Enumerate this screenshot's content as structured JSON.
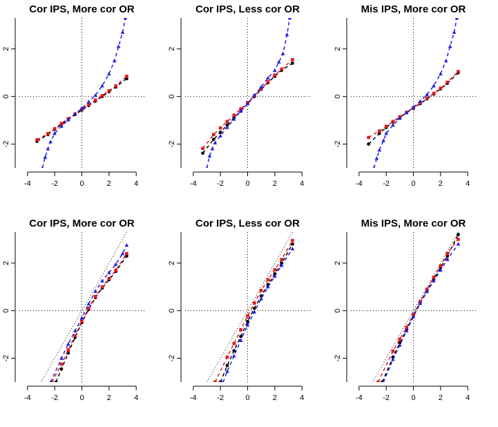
{
  "colors": {
    "black": "#000000",
    "red": "#e41a1c",
    "blue": "#1f1fe6"
  },
  "chart_data": [
    {
      "type": "scatter",
      "title": "Cor IPS, More cor OR",
      "xlim": [
        -4.6,
        4.6
      ],
      "ylim": [
        -3.0,
        3.3
      ],
      "xticks": [
        -4,
        -2,
        0,
        2,
        4
      ],
      "yticks": [
        -2,
        0,
        2
      ],
      "guides": [
        "x=0",
        "y=0"
      ],
      "series": [
        {
          "color": "black",
          "marker": "circle",
          "x": [
            -3.3,
            -2.5,
            -2.0,
            -1.5,
            -1.0,
            -0.5,
            0.0,
            0.5,
            1.0,
            1.5,
            2.0,
            2.5,
            3.3
          ],
          "y": [
            -1.88,
            -1.6,
            -1.38,
            -1.17,
            -0.96,
            -0.76,
            -0.57,
            -0.38,
            -0.19,
            0.0,
            0.2,
            0.4,
            0.75
          ]
        },
        {
          "color": "red",
          "marker": "square",
          "x": [
            -3.3,
            -2.5,
            -2.0,
            -1.5,
            -1.0,
            -0.5,
            0.0,
            0.5,
            1.0,
            1.5,
            2.0,
            2.5,
            3.3
          ],
          "y": [
            -1.82,
            -1.56,
            -1.35,
            -1.13,
            -0.93,
            -0.73,
            -0.53,
            -0.34,
            -0.15,
            0.04,
            0.24,
            0.45,
            0.85
          ]
        },
        {
          "color": "blue",
          "marker": "triangle",
          "x": [
            -2.9,
            -2.7,
            -2.5,
            -2.3,
            -2.0,
            -1.5,
            -1.0,
            -0.5,
            0.0,
            0.5,
            1.0,
            1.5,
            2.0,
            2.4,
            2.7,
            3.0,
            3.2
          ],
          "y": [
            -3.0,
            -2.55,
            -2.2,
            -1.9,
            -1.55,
            -1.25,
            -0.98,
            -0.73,
            -0.5,
            -0.22,
            0.05,
            0.45,
            0.95,
            1.5,
            2.1,
            2.7,
            3.3
          ]
        }
      ]
    },
    {
      "type": "scatter",
      "title": "Cor IPS, Less cor OR",
      "xlim": [
        -4.6,
        4.6
      ],
      "ylim": [
        -3.0,
        3.3
      ],
      "xticks": [
        -4,
        -2,
        0,
        2,
        4
      ],
      "yticks": [
        -2,
        0,
        2
      ],
      "guides": [
        "x=0",
        "y=0"
      ],
      "series": [
        {
          "color": "black",
          "marker": "circle",
          "x": [
            -3.3,
            -2.5,
            -2.0,
            -1.5,
            -1.0,
            -0.5,
            0.0,
            0.5,
            1.0,
            1.5,
            2.0,
            2.5,
            3.3
          ],
          "y": [
            -2.38,
            -1.8,
            -1.5,
            -1.2,
            -0.9,
            -0.6,
            -0.3,
            0.0,
            0.3,
            0.58,
            0.85,
            1.1,
            1.4
          ]
        },
        {
          "color": "red",
          "marker": "square",
          "x": [
            -3.3,
            -2.5,
            -2.0,
            -1.5,
            -1.0,
            -0.5,
            0.0,
            0.5,
            1.0,
            1.5,
            2.0,
            2.5,
            3.3
          ],
          "y": [
            -2.18,
            -1.6,
            -1.32,
            -1.05,
            -0.78,
            -0.52,
            -0.25,
            0.03,
            0.32,
            0.62,
            0.9,
            1.15,
            1.55
          ]
        },
        {
          "color": "blue",
          "marker": "triangle",
          "x": [
            -3.0,
            -2.8,
            -2.6,
            -2.4,
            -2.0,
            -1.5,
            -1.0,
            -0.5,
            0.0,
            0.5,
            1.0,
            1.5,
            2.0,
            2.3,
            2.6,
            2.9,
            3.1
          ],
          "y": [
            -3.0,
            -2.5,
            -2.2,
            -1.95,
            -1.65,
            -1.3,
            -0.95,
            -0.62,
            -0.3,
            0.05,
            0.4,
            0.78,
            1.1,
            1.45,
            1.8,
            2.6,
            3.3
          ]
        }
      ]
    },
    {
      "type": "scatter",
      "title": "Mis IPS, More cor OR",
      "xlim": [
        -4.6,
        4.6
      ],
      "ylim": [
        -3.0,
        3.3
      ],
      "xticks": [
        -4,
        -2,
        0,
        2,
        4
      ],
      "yticks": [
        -2,
        0,
        2
      ],
      "guides": [
        "x=0",
        "y=0"
      ],
      "series": [
        {
          "color": "black",
          "marker": "circle",
          "x": [
            -3.3,
            -2.5,
            -2.0,
            -1.5,
            -1.0,
            -0.5,
            0.0,
            0.5,
            1.0,
            1.5,
            2.0,
            2.5,
            3.3
          ],
          "y": [
            -2.0,
            -1.55,
            -1.3,
            -1.08,
            -0.88,
            -0.68,
            -0.5,
            -0.3,
            -0.1,
            0.1,
            0.32,
            0.55,
            1.0
          ]
        },
        {
          "color": "red",
          "marker": "square",
          "x": [
            -3.3,
            -2.5,
            -2.0,
            -1.5,
            -1.0,
            -0.5,
            0.0,
            0.5,
            1.0,
            1.5,
            2.0,
            2.5,
            3.3
          ],
          "y": [
            -1.72,
            -1.45,
            -1.25,
            -1.05,
            -0.85,
            -0.66,
            -0.47,
            -0.27,
            -0.07,
            0.13,
            0.35,
            0.6,
            1.05
          ]
        },
        {
          "color": "blue",
          "marker": "triangle",
          "x": [
            -2.9,
            -2.7,
            -2.5,
            -2.2,
            -2.0,
            -1.5,
            -1.0,
            -0.5,
            0.0,
            0.5,
            1.0,
            1.5,
            2.0,
            2.4,
            2.7,
            3.0,
            3.2
          ],
          "y": [
            -3.0,
            -2.6,
            -2.25,
            -1.85,
            -1.55,
            -1.2,
            -0.92,
            -0.68,
            -0.45,
            -0.2,
            0.08,
            0.45,
            0.95,
            1.5,
            2.1,
            2.7,
            3.3
          ]
        }
      ]
    },
    {
      "type": "scatter",
      "title": "Cor IPS, More cor OR",
      "xlim": [
        -4.6,
        4.6
      ],
      "ylim": [
        -3.0,
        3.3
      ],
      "xticks": [
        -4,
        -2,
        0,
        2,
        4
      ],
      "yticks": [
        -2,
        0,
        2
      ],
      "guides": [
        "x=0",
        "y=0",
        "y=x"
      ],
      "series": [
        {
          "color": "black",
          "marker": "circle",
          "x": [
            -1.9,
            -1.5,
            -1.0,
            -0.5,
            0.0,
            0.5,
            1.0,
            1.5,
            2.0,
            2.5,
            3.3
          ],
          "y": [
            -3.0,
            -2.45,
            -1.78,
            -1.12,
            -0.5,
            0.05,
            0.55,
            0.95,
            1.3,
            1.65,
            2.3
          ]
        },
        {
          "color": "red",
          "marker": "square",
          "x": [
            -2.2,
            -1.5,
            -1.0,
            -0.5,
            0.0,
            0.5,
            1.0,
            1.5,
            2.0,
            2.5,
            3.3
          ],
          "y": [
            -3.0,
            -2.25,
            -1.65,
            -1.05,
            -0.45,
            0.1,
            0.6,
            1.0,
            1.35,
            1.7,
            2.4
          ]
        },
        {
          "color": "blue",
          "marker": "triangle",
          "x": [
            -2.3,
            -1.5,
            -1.0,
            -0.5,
            0.0,
            0.5,
            1.0,
            1.5,
            2.0,
            2.5,
            3.0,
            3.3
          ],
          "y": [
            -3.0,
            -2.0,
            -1.4,
            -0.85,
            -0.3,
            0.28,
            0.82,
            1.25,
            1.6,
            1.95,
            2.4,
            2.75
          ]
        }
      ]
    },
    {
      "type": "scatter",
      "title": "Cor IPS, Less cor OR",
      "xlim": [
        -4.6,
        4.6
      ],
      "ylim": [
        -3.0,
        3.3
      ],
      "xticks": [
        -4,
        -2,
        0,
        2,
        4
      ],
      "yticks": [
        -2,
        0,
        2
      ],
      "guides": [
        "x=0",
        "y=0",
        "y=x"
      ],
      "series": [
        {
          "color": "black",
          "marker": "circle",
          "x": [
            -2.0,
            -1.5,
            -1.0,
            -0.5,
            0.0,
            0.5,
            1.0,
            1.5,
            2.0,
            2.5,
            3.3
          ],
          "y": [
            -3.0,
            -2.3,
            -1.68,
            -1.08,
            -0.45,
            0.1,
            0.62,
            1.1,
            1.55,
            2.0,
            2.8
          ]
        },
        {
          "color": "red",
          "marker": "square",
          "x": [
            -2.4,
            -1.5,
            -1.0,
            -0.5,
            0.0,
            0.5,
            1.0,
            1.5,
            2.0,
            2.5,
            3.3
          ],
          "y": [
            -3.0,
            -1.95,
            -1.38,
            -0.8,
            -0.22,
            0.32,
            0.85,
            1.3,
            1.72,
            2.15,
            2.95
          ]
        },
        {
          "color": "blue",
          "marker": "triangle",
          "x": [
            -1.8,
            -1.5,
            -1.0,
            -0.5,
            0.0,
            0.5,
            1.0,
            1.5,
            2.0,
            2.5,
            3.3
          ],
          "y": [
            -3.0,
            -2.55,
            -1.9,
            -1.25,
            -0.6,
            -0.05,
            0.5,
            1.0,
            1.45,
            1.9,
            2.6
          ]
        }
      ]
    },
    {
      "type": "scatter",
      "title": "Mis IPS, More cor OR",
      "xlim": [
        -4.6,
        4.6
      ],
      "ylim": [
        -3.0,
        3.3
      ],
      "xticks": [
        -4,
        -2,
        0,
        2,
        4
      ],
      "yticks": [
        -2,
        0,
        2
      ],
      "guides": [
        "x=0",
        "y=0",
        "y=x"
      ],
      "series": [
        {
          "color": "black",
          "marker": "circle",
          "x": [
            -2.3,
            -1.5,
            -1.0,
            -0.5,
            0.0,
            0.5,
            1.0,
            1.5,
            2.0,
            2.5,
            3.3
          ],
          "y": [
            -3.0,
            -1.95,
            -1.35,
            -0.8,
            -0.2,
            0.35,
            0.85,
            1.32,
            1.8,
            2.3,
            3.2
          ]
        },
        {
          "color": "red",
          "marker": "square",
          "x": [
            -2.6,
            -1.5,
            -1.0,
            -0.5,
            0.0,
            0.5,
            1.0,
            1.5,
            2.0,
            2.5,
            3.3
          ],
          "y": [
            -3.0,
            -1.7,
            -1.2,
            -0.7,
            -0.15,
            0.38,
            0.9,
            1.4,
            1.88,
            2.4,
            3.0
          ]
        },
        {
          "color": "blue",
          "marker": "triangle",
          "x": [
            -2.2,
            -1.5,
            -1.0,
            -0.5,
            0.0,
            0.5,
            1.0,
            1.5,
            2.0,
            2.5,
            3.3
          ],
          "y": [
            -3.0,
            -2.05,
            -1.45,
            -0.85,
            -0.25,
            0.3,
            0.8,
            1.25,
            1.7,
            2.15,
            2.8
          ]
        }
      ]
    }
  ]
}
